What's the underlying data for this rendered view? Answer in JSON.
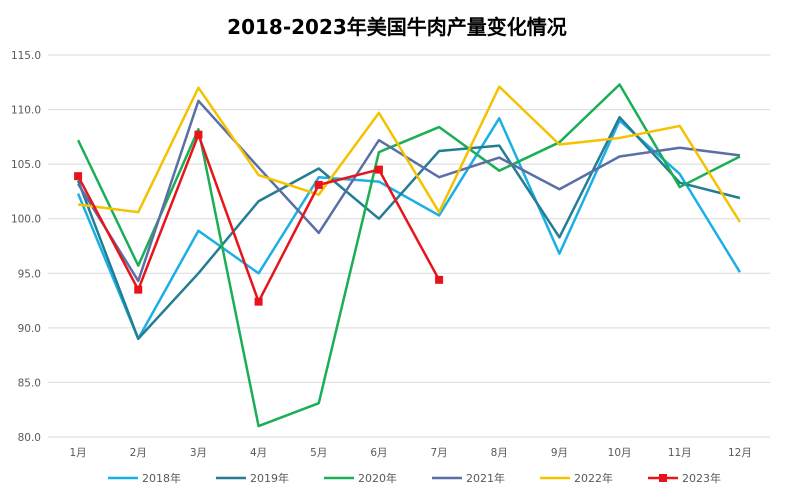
{
  "chart_data": {
    "type": "line",
    "title": "2018-2023年美国牛肉产量变化情况",
    "xlabel": "",
    "ylabel": "",
    "categories": [
      "1月",
      "2月",
      "3月",
      "4月",
      "5月",
      "6月",
      "7月",
      "8月",
      "9月",
      "10月",
      "11月",
      "12月"
    ],
    "ylim": [
      80.0,
      115.0
    ],
    "yticks": [
      "80.0",
      "85.0",
      "90.0",
      "95.0",
      "100.0",
      "105.0",
      "110.0",
      "115.0"
    ],
    "ytick_values": [
      80,
      85,
      90,
      95,
      100,
      105,
      110,
      115
    ],
    "grid": true,
    "legend_position": "bottom",
    "series": [
      {
        "name": "2018年",
        "color": "#1AAFE6",
        "marker": "none",
        "values": [
          102.3,
          89.0,
          98.9,
          95.0,
          103.8,
          103.4,
          100.3,
          109.2,
          96.8,
          109.0,
          104.1,
          95.1
        ]
      },
      {
        "name": "2019年",
        "color": "#237E93",
        "marker": "none",
        "values": [
          103.5,
          89.0,
          95.0,
          101.6,
          104.6,
          100.0,
          106.2,
          106.7,
          98.3,
          109.3,
          103.3,
          101.9
        ]
      },
      {
        "name": "2020年",
        "color": "#1AAF54",
        "marker": "none",
        "values": [
          107.2,
          95.7,
          108.2,
          81.0,
          83.1,
          106.1,
          108.4,
          104.4,
          107.0,
          112.3,
          102.9,
          105.7
        ]
      },
      {
        "name": "2021年",
        "color": "#5B6FA6",
        "marker": "none",
        "values": [
          103.2,
          94.3,
          110.8,
          104.7,
          98.7,
          107.2,
          103.8,
          105.6,
          102.7,
          105.7,
          106.5,
          105.8
        ]
      },
      {
        "name": "2022年",
        "color": "#F5C200",
        "marker": "none",
        "values": [
          101.3,
          100.6,
          112.0,
          104.0,
          102.2,
          109.7,
          100.6,
          112.1,
          106.8,
          107.4,
          108.5,
          99.7
        ]
      },
      {
        "name": "2023年",
        "color": "#E8141B",
        "marker": "square",
        "values": [
          103.9,
          93.5,
          107.7,
          92.4,
          103.1,
          104.5,
          94.4,
          null,
          null,
          null,
          null,
          null
        ]
      }
    ]
  }
}
